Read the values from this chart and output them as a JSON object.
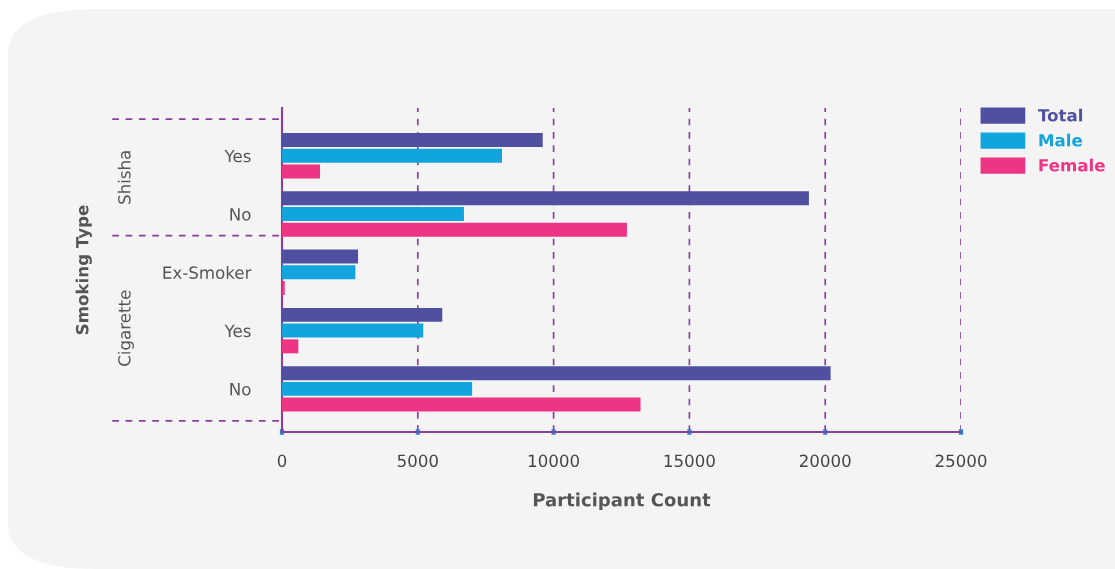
{
  "chart_data": {
    "type": "bar",
    "orientation": "horizontal",
    "xlabel": "Participant Count",
    "ylabel": "Smoking Type",
    "categories": [
      "Yes",
      "No",
      "Ex-Smoker",
      "Yes",
      "No"
    ],
    "annotations": [
      "Shisha",
      "Cigarette"
    ],
    "series": [
      {
        "name": "Total",
        "color": "#5050a0",
        "values": [
          9600,
          19400,
          2800,
          5900,
          20200
        ]
      },
      {
        "name": "Male",
        "color": "#12a5dd",
        "values": [
          8100,
          6700,
          2700,
          5200,
          7000
        ]
      },
      {
        "name": "Female",
        "color": "#ee3583",
        "values": [
          1400,
          12700,
          100,
          600,
          13200
        ]
      }
    ],
    "xlim": [
      0,
      25000
    ],
    "xticks": [
      0,
      5000,
      10000,
      15000,
      20000,
      25000
    ],
    "grid": "x",
    "legend": "top right"
  }
}
